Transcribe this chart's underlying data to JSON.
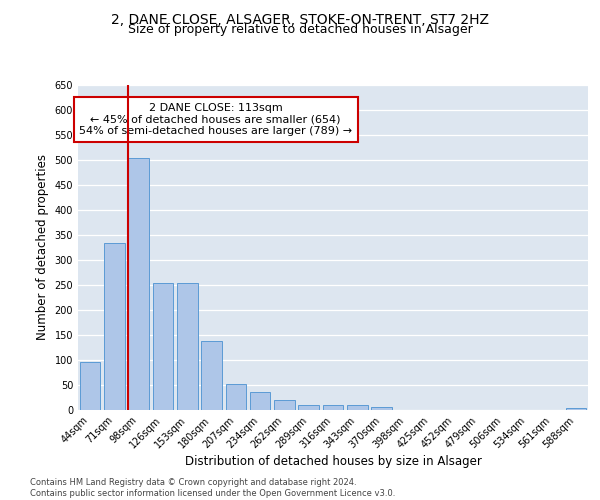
{
  "title_line1": "2, DANE CLOSE, ALSAGER, STOKE-ON-TRENT, ST7 2HZ",
  "title_line2": "Size of property relative to detached houses in Alsager",
  "xlabel": "Distribution of detached houses by size in Alsager",
  "ylabel": "Number of detached properties",
  "categories": [
    "44sqm",
    "71sqm",
    "98sqm",
    "126sqm",
    "153sqm",
    "180sqm",
    "207sqm",
    "234sqm",
    "262sqm",
    "289sqm",
    "316sqm",
    "343sqm",
    "370sqm",
    "398sqm",
    "425sqm",
    "452sqm",
    "479sqm",
    "506sqm",
    "534sqm",
    "561sqm",
    "588sqm"
  ],
  "values": [
    97,
    333,
    504,
    254,
    254,
    138,
    53,
    37,
    21,
    10,
    10,
    10,
    6,
    0,
    0,
    0,
    0,
    0,
    0,
    0,
    5
  ],
  "bar_color": "#aec6e8",
  "bar_edge_color": "#5b9bd5",
  "vline_color": "#cc0000",
  "vline_x_index": 2,
  "annotation_text": "2 DANE CLOSE: 113sqm\n← 45% of detached houses are smaller (654)\n54% of semi-detached houses are larger (789) →",
  "annotation_box_color": "#ffffff",
  "annotation_box_edge": "#cc0000",
  "ylim": [
    0,
    650
  ],
  "yticks": [
    0,
    50,
    100,
    150,
    200,
    250,
    300,
    350,
    400,
    450,
    500,
    550,
    600,
    650
  ],
  "bg_color": "#dde6f0",
  "footnote": "Contains HM Land Registry data © Crown copyright and database right 2024.\nContains public sector information licensed under the Open Government Licence v3.0.",
  "title_fontsize": 10,
  "subtitle_fontsize": 9,
  "label_fontsize": 8.5,
  "tick_fontsize": 7,
  "annot_fontsize": 8,
  "footnote_fontsize": 6
}
